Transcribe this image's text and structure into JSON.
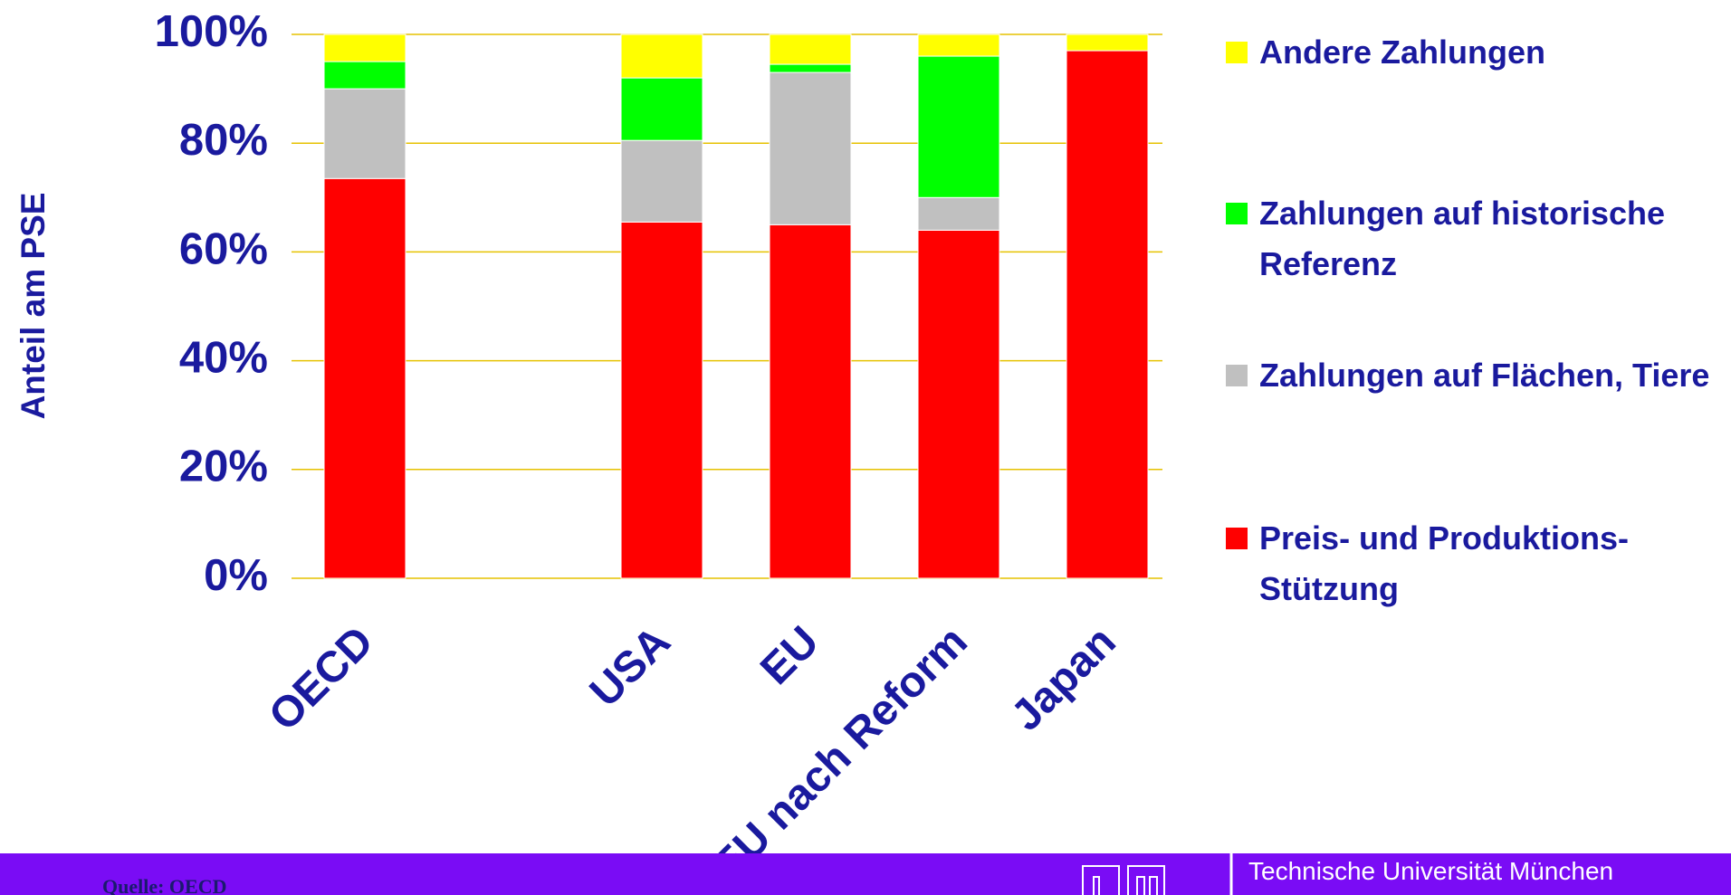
{
  "chart_data": {
    "type": "stacked_bar",
    "ylabel": "Anteil am PSE",
    "categories": [
      "OECD",
      null,
      "USA",
      "EU",
      "EU nach Reform",
      "Japan"
    ],
    "series": [
      {
        "name": "Preis- und Produktions-Stützung",
        "color": "#ff0000",
        "values": [
          73.5,
          null,
          65.5,
          65,
          64,
          97
        ]
      },
      {
        "name": "Zahlungen auf Flächen, Tiere",
        "color": "#c0c0c0",
        "values": [
          16.5,
          null,
          15,
          28,
          6,
          0
        ]
      },
      {
        "name": "Zahlungen auf historische Referenz",
        "color": "#00ff00",
        "values": [
          5,
          null,
          11.5,
          1.5,
          26,
          0
        ]
      },
      {
        "name": "Andere Zahlungen",
        "color": "#ffff00",
        "values": [
          5,
          null,
          8,
          5.5,
          4,
          3
        ]
      }
    ],
    "ylim": [
      0,
      100
    ],
    "yticks": [
      {
        "value": 0,
        "label": "0%"
      },
      {
        "value": 20,
        "label": "20%"
      },
      {
        "value": 40,
        "label": "40%"
      },
      {
        "value": 60,
        "label": "60%"
      },
      {
        "value": 80,
        "label": "80%"
      },
      {
        "value": 100,
        "label": "100%"
      }
    ],
    "grid": true,
    "legend": "right",
    "source": "Quelle: OECD",
    "institution": "Technische Universität München"
  }
}
